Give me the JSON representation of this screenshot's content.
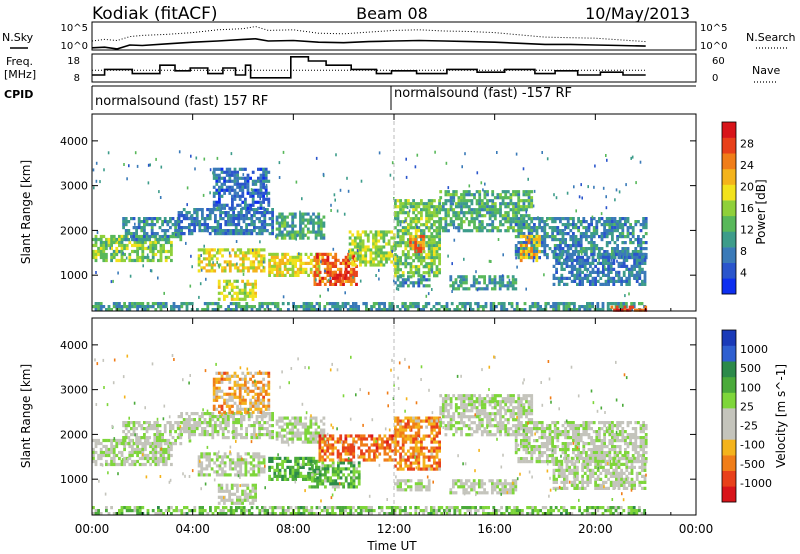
{
  "header": {
    "station": "Kodiak (fitACF)",
    "beam": "Beam 08",
    "date": "10/May/2013"
  },
  "top_panels": {
    "nsky_label": "N.Sky",
    "nsearch_label": "N.Search",
    "freq_label_1": "Freq.",
    "freq_label_2": "[MHz]",
    "nave_label": "Nave",
    "cpid_label": "CPID",
    "noise_ticks_left": [
      "10^5",
      "10^0"
    ],
    "noise_ticks_right": [
      "10^5",
      "10^0"
    ],
    "freq_ticks": [
      "18",
      "8"
    ],
    "nave_ticks": [
      "60",
      "0"
    ],
    "cpid_segments": [
      {
        "start_hour": 0,
        "end_hour": 12,
        "label": "normalsound (fast) 157 RF"
      },
      {
        "start_hour": 12,
        "end_hour": 24,
        "label": "normalsound (fast) -157 RF"
      }
    ]
  },
  "chart_data": [
    {
      "type": "line",
      "title": "",
      "series": [
        {
          "name": "N.Sky",
          "style": "solid",
          "x": [
            0,
            0.5,
            1,
            1.5,
            2,
            3,
            4,
            5,
            6,
            6.5,
            7,
            8,
            9,
            10,
            11,
            12,
            13,
            14,
            15,
            16,
            17,
            18,
            19,
            20,
            21,
            22
          ],
          "y": [
            0.4,
            0.5,
            0.2,
            0.9,
            0.8,
            1.1,
            1.4,
            1.6,
            1.9,
            2.0,
            1.6,
            1.7,
            1.4,
            1.3,
            1.5,
            1.6,
            1.7,
            1.6,
            1.5,
            1.4,
            1.2,
            1.0,
            1.0,
            0.9,
            0.8,
            0.7
          ]
        },
        {
          "name": "N.Search",
          "style": "dotted",
          "x": [
            0,
            0.5,
            1,
            1.5,
            2,
            3,
            4,
            5,
            6,
            6.5,
            7,
            8,
            9,
            10,
            11,
            12,
            13,
            14,
            15,
            16,
            17,
            18,
            19,
            20,
            21,
            22
          ],
          "y": [
            1.6,
            1.9,
            1.7,
            2.4,
            2.6,
            2.8,
            3.1,
            3.6,
            3.8,
            4.2,
            3.5,
            3.6,
            3.0,
            2.9,
            3.2,
            3.5,
            3.6,
            3.4,
            3.3,
            3.1,
            2.7,
            2.3,
            2.2,
            2.1,
            1.8,
            1.5
          ]
        }
      ],
      "ylabel": "N.Sky",
      "xlim": [
        0,
        24
      ]
    },
    {
      "type": "line",
      "title": "",
      "series": [
        {
          "name": "Freq.",
          "style": "solid",
          "x": [
            0,
            0.5,
            0.5,
            1.6,
            1.6,
            2.7,
            2.7,
            3.3,
            3.3,
            3.9,
            3.9,
            4.6,
            4.6,
            5.2,
            5.2,
            5.7,
            5.7,
            6.1,
            6.1,
            6.3,
            6.3,
            7.9,
            7.9,
            8.6,
            8.6,
            9.3,
            9.3,
            10.3,
            10.3,
            11.3,
            11.3,
            11.9,
            11.9,
            12.9,
            12.9,
            14.1,
            14.1,
            15.3,
            15.3,
            16.4,
            16.4,
            17.6,
            17.6,
            18.4,
            18.4,
            19.3,
            19.3,
            20.2,
            20.2,
            21.1,
            21.1,
            22
          ],
          "y": [
            10.5,
            10.5,
            12.5,
            12.5,
            11,
            11,
            14,
            14,
            12,
            12,
            13,
            13,
            11,
            11,
            13,
            13,
            10.5,
            10.5,
            14,
            14,
            9.5,
            9.5,
            17,
            17,
            15.5,
            15.5,
            14,
            14,
            12.5,
            12.5,
            11,
            11,
            12,
            12,
            11,
            11,
            12.5,
            12.5,
            11.5,
            11.5,
            12.5,
            12.5,
            11,
            11,
            12,
            12,
            10.5,
            10.5,
            11.5,
            11.5,
            10.5,
            10.5
          ]
        },
        {
          "name": "Nave",
          "style": "dotted",
          "x": [
            0,
            22
          ],
          "y": [
            25,
            25
          ]
        }
      ],
      "ylabel": "Freq. [MHz]",
      "ylim": [
        8,
        18
      ],
      "y2lim": [
        0,
        60
      ],
      "xlim": [
        0,
        24
      ]
    },
    {
      "type": "heatmap",
      "title": "",
      "xlabel": "",
      "ylabel": "Slant Range [km]",
      "ylim": [
        200,
        4600
      ],
      "yticks": [
        "1000",
        "2000",
        "3000",
        "4000"
      ],
      "xlim": [
        0,
        24
      ],
      "colorbar": {
        "label": "Power [dB]",
        "ticks": [
          "4",
          "8",
          "12",
          "16",
          "20",
          "24",
          "28"
        ],
        "colors": [
          "#0d2ff0",
          "#2a55cc",
          "#3a7ab8",
          "#3d9c8a",
          "#58b85a",
          "#8fd03a",
          "#f2e21c",
          "#f4b31b",
          "#f07d18",
          "#e8401a",
          "#d8141a"
        ]
      },
      "bands": [
        {
          "x0": 0,
          "x1": 3.2,
          "y0": 1300,
          "y1": 1900,
          "v": 0.45
        },
        {
          "x0": 1.2,
          "x1": 3.5,
          "y0": 1800,
          "y1": 2300,
          "v": 0.25
        },
        {
          "x0": 3.4,
          "x1": 7.2,
          "y0": 1900,
          "y1": 2500,
          "v": 0.2
        },
        {
          "x0": 4.2,
          "x1": 6.8,
          "y0": 1100,
          "y1": 1600,
          "v": 0.6
        },
        {
          "x0": 4.8,
          "x1": 7.0,
          "y0": 2500,
          "y1": 3400,
          "v": 0.15
        },
        {
          "x0": 5.0,
          "x1": 6.5,
          "y0": 450,
          "y1": 900,
          "v": 0.55
        },
        {
          "x0": 7.0,
          "x1": 9.0,
          "y0": 1000,
          "y1": 1500,
          "v": 0.6
        },
        {
          "x0": 7.3,
          "x1": 9.2,
          "y0": 1800,
          "y1": 2400,
          "v": 0.35
        },
        {
          "x0": 8.8,
          "x1": 10.5,
          "y0": 800,
          "y1": 1500,
          "v": 0.85
        },
        {
          "x0": 9.6,
          "x1": 10.3,
          "y0": 850,
          "y1": 1100,
          "v": 0.95
        },
        {
          "x0": 10.2,
          "x1": 12.0,
          "y0": 1200,
          "y1": 2000,
          "v": 0.5
        },
        {
          "x0": 12.0,
          "x1": 13.8,
          "y0": 1000,
          "y1": 2700,
          "v": 0.45
        },
        {
          "x0": 12.6,
          "x1": 13.2,
          "y0": 1500,
          "y1": 1900,
          "v": 0.8
        },
        {
          "x0": 12.0,
          "x1": 13.4,
          "y0": 750,
          "y1": 1000,
          "v": 0.25
        },
        {
          "x0": 13.8,
          "x1": 17.5,
          "y0": 2000,
          "y1": 2900,
          "v": 0.35
        },
        {
          "x0": 14.2,
          "x1": 16.8,
          "y0": 700,
          "y1": 1000,
          "v": 0.3
        },
        {
          "x0": 16.8,
          "x1": 22,
          "y0": 1400,
          "y1": 2300,
          "v": 0.25
        },
        {
          "x0": 17.0,
          "x1": 17.8,
          "y0": 1300,
          "y1": 1900,
          "v": 0.7
        },
        {
          "x0": 18.3,
          "x1": 22,
          "y0": 800,
          "y1": 1500,
          "v": 0.2
        },
        {
          "x0": 0,
          "x1": 22,
          "y0": 200,
          "y1": 400,
          "v": 0.3
        },
        {
          "x0": 20.5,
          "x1": 22,
          "y0": 200,
          "y1": 320,
          "v": 0.9
        }
      ]
    },
    {
      "type": "heatmap",
      "title": "",
      "xlabel": "Time UT",
      "ylabel": "Slant Range [km]",
      "ylim": [
        200,
        4600
      ],
      "yticks": [
        "1000",
        "2000",
        "3000",
        "4000"
      ],
      "xlim": [
        0,
        24
      ],
      "xticks": [
        "00:00",
        "04:00",
        "08:00",
        "12:00",
        "16:00",
        "20:00",
        "00:00"
      ],
      "colorbar": {
        "label": "Velocity [m s^-1]",
        "ticks": [
          "1000",
          "500",
          "100",
          "25",
          "-25",
          "-100",
          "-500",
          "-1000"
        ],
        "colors": [
          "#1a3ab8",
          "#2f5fd0",
          "#2c8a4a",
          "#4aaa3a",
          "#7ed63a",
          "#c4c4bc",
          "#c4c4bc",
          "#f4b31b",
          "#f07d18",
          "#e8401a",
          "#d8141a"
        ]
      },
      "bands": [
        {
          "x0": 0,
          "x1": 3.2,
          "y0": 1300,
          "y1": 1900,
          "v": 0.5
        },
        {
          "x0": 1.2,
          "x1": 3.5,
          "y0": 1800,
          "y1": 2300,
          "v": 0.5
        },
        {
          "x0": 3.4,
          "x1": 7.2,
          "y0": 1900,
          "y1": 2500,
          "v": 0.5
        },
        {
          "x0": 4.2,
          "x1": 6.8,
          "y0": 1100,
          "y1": 1600,
          "v": 0.5
        },
        {
          "x0": 4.8,
          "x1": 7.0,
          "y0": 2500,
          "y1": 3400,
          "v": 0.72
        },
        {
          "x0": 5.0,
          "x1": 6.5,
          "y0": 450,
          "y1": 900,
          "v": 0.5
        },
        {
          "x0": 7.0,
          "x1": 9.0,
          "y0": 1000,
          "y1": 1500,
          "v": 0.3
        },
        {
          "x0": 7.3,
          "x1": 9.2,
          "y0": 1800,
          "y1": 2400,
          "v": 0.5
        },
        {
          "x0": 8.6,
          "x1": 10.6,
          "y0": 800,
          "y1": 1400,
          "v": 0.35
        },
        {
          "x0": 9.0,
          "x1": 12.0,
          "y0": 1400,
          "y1": 2000,
          "v": 0.82
        },
        {
          "x0": 12.0,
          "x1": 13.8,
          "y0": 1200,
          "y1": 2400,
          "v": 0.78
        },
        {
          "x0": 12.0,
          "x1": 13.4,
          "y0": 750,
          "y1": 1000,
          "v": 0.5
        },
        {
          "x0": 13.8,
          "x1": 17.5,
          "y0": 2000,
          "y1": 2900,
          "v": 0.5
        },
        {
          "x0": 14.2,
          "x1": 16.8,
          "y0": 700,
          "y1": 1000,
          "v": 0.5
        },
        {
          "x0": 16.8,
          "x1": 22,
          "y0": 1400,
          "y1": 2300,
          "v": 0.5
        },
        {
          "x0": 18.3,
          "x1": 22,
          "y0": 800,
          "y1": 1500,
          "v": 0.5
        },
        {
          "x0": 0,
          "x1": 22,
          "y0": 200,
          "y1": 400,
          "v": 0.38
        }
      ]
    }
  ]
}
